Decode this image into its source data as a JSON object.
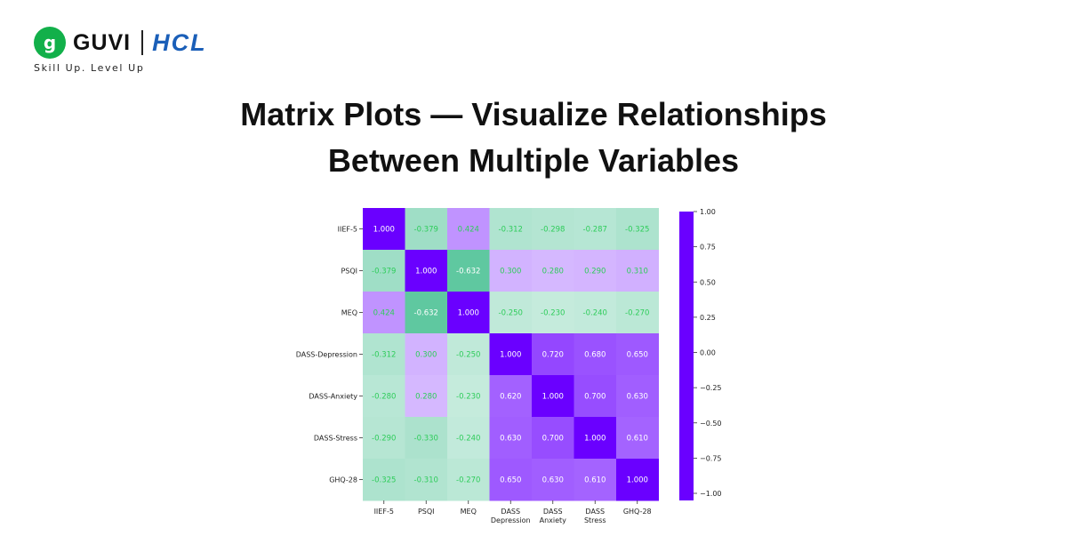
{
  "brand": {
    "logo_letter": "g",
    "name": "GUVI",
    "partner": "HCL",
    "tagline": "Skill Up. Level Up"
  },
  "headline": {
    "line1": "Matrix Plots — Visualize Relationships",
    "line2": "Between Multiple Variables"
  },
  "chart_data": {
    "type": "heatmap",
    "title": "",
    "x_labels": [
      "IIEF-5",
      "PSQI",
      "MEQ",
      "DASS\nDepression",
      "DASS\nAnxiety",
      "DASS\nStress",
      "GHQ-28"
    ],
    "y_labels": [
      "IIEF-5",
      "PSQI",
      "MEQ",
      "DASS-Depression",
      "DASS-Anxiety",
      "DASS-Stress",
      "GHQ-28"
    ],
    "values": [
      [
        1.0,
        -0.379,
        0.424,
        -0.312,
        -0.298,
        -0.287,
        -0.325
      ],
      [
        -0.379,
        1.0,
        -0.632,
        0.3,
        0.28,
        0.29,
        0.31
      ],
      [
        0.424,
        -0.632,
        1.0,
        -0.25,
        -0.23,
        -0.24,
        -0.27
      ],
      [
        -0.312,
        0.3,
        -0.25,
        1.0,
        0.72,
        0.68,
        0.65
      ],
      [
        -0.28,
        0.28,
        -0.23,
        0.62,
        1.0,
        0.7,
        0.63
      ],
      [
        -0.29,
        -0.33,
        -0.24,
        0.63,
        0.7,
        1.0,
        0.61
      ],
      [
        -0.325,
        -0.31,
        -0.27,
        0.65,
        0.63,
        0.61,
        1.0
      ]
    ],
    "colorbar": {
      "ticks": [
        "1.00",
        "0.75",
        "0.50",
        "0.25",
        "0.00",
        "−0.25",
        "−0.50",
        "−0.75",
        "−1.00"
      ],
      "range": [
        -1,
        1
      ]
    },
    "colors": {
      "positive": "#6a00ff",
      "negative": "#02a868",
      "light": "#ffffff",
      "text_dark_cell": "#ffffff",
      "text_light_cell": "#2ecc5a"
    }
  }
}
